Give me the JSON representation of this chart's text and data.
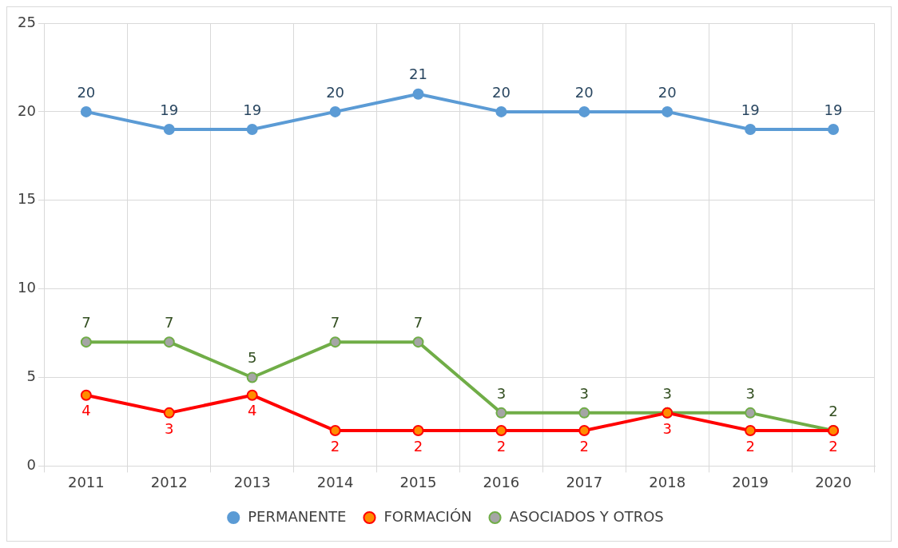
{
  "chart_data": {
    "type": "line",
    "categories": [
      "2011",
      "2012",
      "2013",
      "2014",
      "2015",
      "2016",
      "2017",
      "2018",
      "2019",
      "2020"
    ],
    "series": [
      {
        "name": "PERMANENTE",
        "color": "#5b9bd5",
        "values": [
          20,
          19,
          19,
          20,
          21,
          20,
          20,
          20,
          19,
          19
        ]
      },
      {
        "name": "FORMACIÓN",
        "color": "#ff0000",
        "values": [
          4,
          3,
          4,
          2,
          2,
          2,
          2,
          3,
          2,
          2
        ]
      },
      {
        "name": "ASOCIADOS Y OTROS",
        "color": "#70ad47",
        "values": [
          7,
          7,
          5,
          7,
          7,
          3,
          3,
          3,
          3,
          2
        ]
      }
    ],
    "ylim": [
      0,
      25
    ],
    "yticks": [
      0,
      5,
      10,
      15,
      20,
      25
    ],
    "grid": true,
    "legend": "bottom",
    "marker": "circle",
    "line_style": "solid",
    "data_labels": true
  }
}
